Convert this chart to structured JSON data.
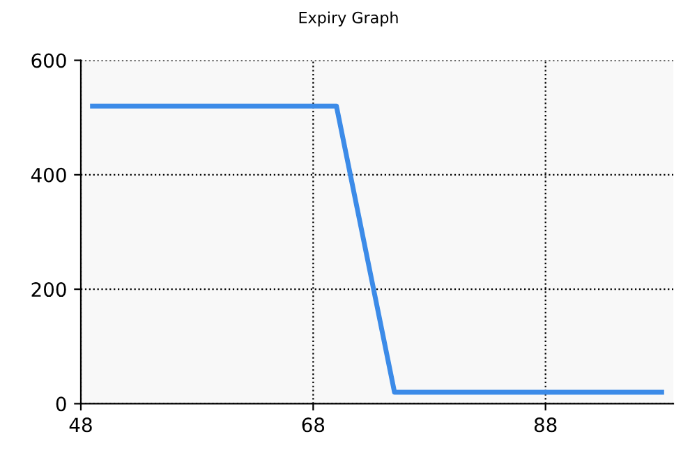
{
  "chart_data": {
    "type": "line",
    "title": "Expiry Graph",
    "x": [
      49,
      70,
      75,
      98
    ],
    "series": [
      {
        "color": "#3c8be8",
        "values": [
          520,
          520,
          20,
          20
        ]
      }
    ],
    "xlim": [
      48,
      99
    ],
    "xticks": [
      48,
      68,
      88
    ],
    "ylim": [
      0,
      600
    ],
    "yticks": [
      0,
      200,
      400,
      600
    ],
    "grid": true,
    "line_style": "solid",
    "marker": "none"
  }
}
